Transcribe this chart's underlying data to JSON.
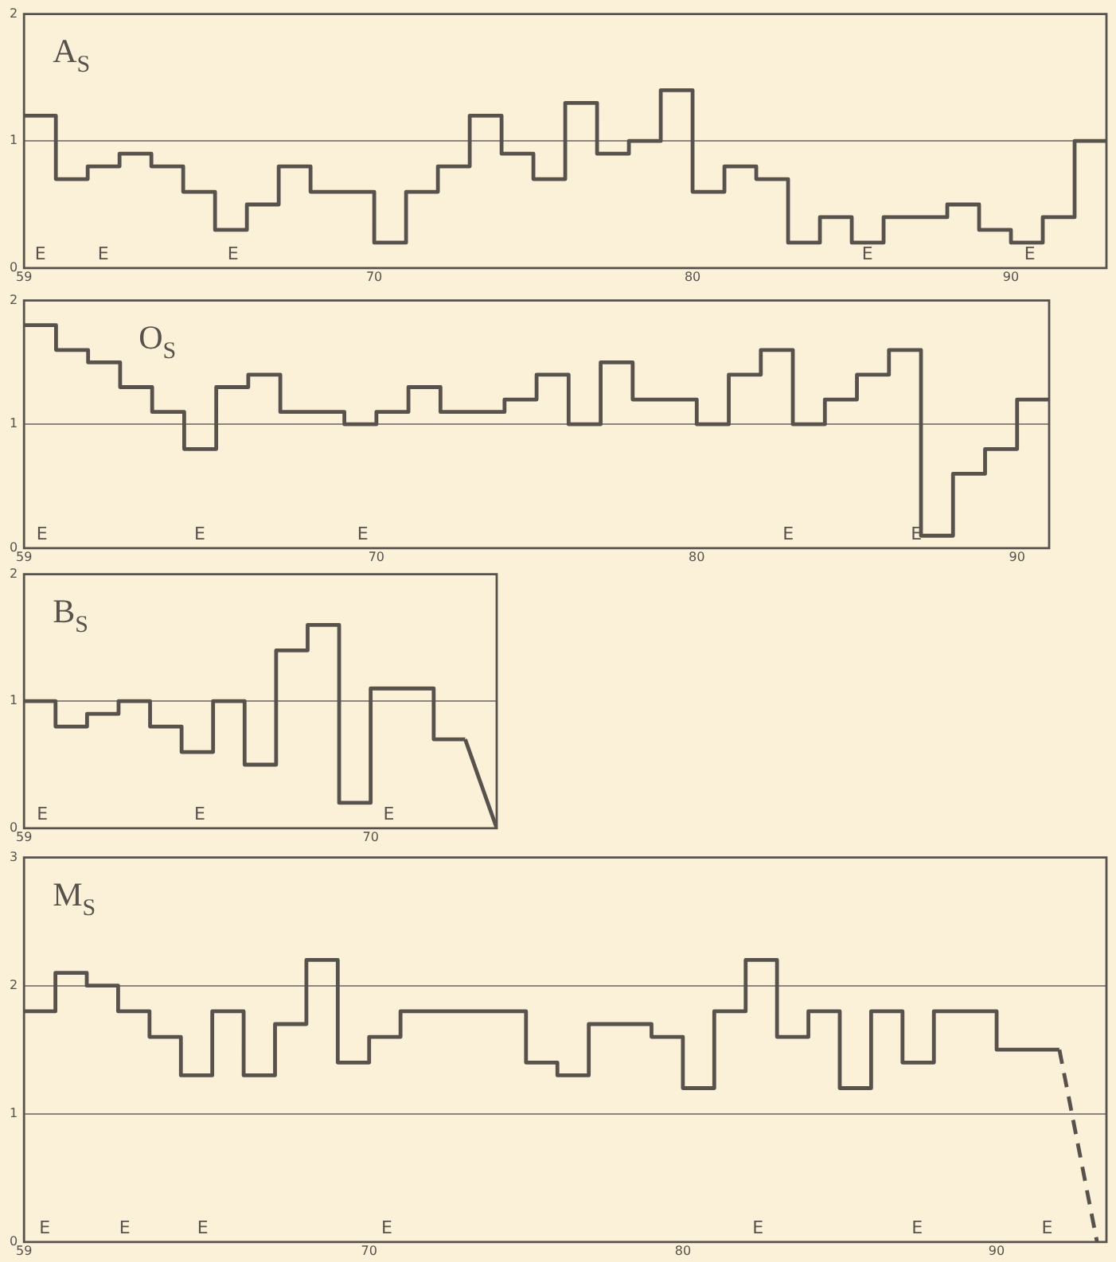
{
  "chart_data": [
    {
      "type": "step",
      "title": "A$_{S}$",
      "xlim": [
        59,
        93
      ],
      "ylim": [
        0,
        2
      ],
      "xticks": [
        59,
        70,
        80,
        90
      ],
      "yticks": [
        0,
        1,
        2
      ],
      "grid": "y",
      "annotations": [
        "E",
        "E",
        "E",
        "E",
        "E"
      ],
      "series": [
        {
          "color": "#57524c",
          "x": [
            59,
            60,
            61,
            62,
            63,
            64,
            65,
            66,
            67,
            68,
            70,
            71,
            72,
            73,
            74,
            75,
            76,
            77,
            78,
            79,
            80,
            81,
            82,
            83,
            84,
            85,
            86,
            88,
            89,
            90,
            91,
            92,
            93
          ],
          "values": [
            1.2,
            0.7,
            0.8,
            0.9,
            0.8,
            0.6,
            0.3,
            0.5,
            0.8,
            0.6,
            0.2,
            0.6,
            0.8,
            1.2,
            0.9,
            0.7,
            1.3,
            0.9,
            1.0,
            1.4,
            0.6,
            0.8,
            0.7,
            0.2,
            0.4,
            0.2,
            0.4,
            0.5,
            0.3,
            0.2,
            0.4,
            1.0,
            1.0
          ]
        }
      ]
    },
    {
      "type": "step",
      "title": "O$_{S}$",
      "xlim": [
        59,
        91
      ],
      "ylim": [
        0,
        2
      ],
      "xticks": [
        59,
        70,
        80,
        90
      ],
      "yticks": [
        0,
        1,
        2
      ],
      "grid": "y",
      "annotations": [
        "E",
        "E",
        "E",
        "E",
        "E"
      ],
      "series": [
        {
          "color": "#57524c",
          "x": [
            59,
            60,
            61,
            62,
            63,
            64,
            65,
            66,
            67,
            69,
            70,
            71,
            72,
            74,
            75,
            76,
            77,
            78,
            80,
            81,
            82,
            83,
            84,
            85,
            86,
            87,
            88,
            89,
            90,
            91
          ],
          "values": [
            1.8,
            1.6,
            1.5,
            1.3,
            1.1,
            0.8,
            1.3,
            1.4,
            1.1,
            1.0,
            1.1,
            1.3,
            1.1,
            1.2,
            1.4,
            1.0,
            1.5,
            1.2,
            1.0,
            1.4,
            1.6,
            1.0,
            1.2,
            1.4,
            1.6,
            0.1,
            0.6,
            0.8,
            1.2,
            1.2
          ]
        }
      ]
    },
    {
      "type": "step",
      "title": "B$_{S}$",
      "xlim": [
        59,
        74
      ],
      "ylim": [
        0,
        2
      ],
      "xticks": [
        59,
        70
      ],
      "yticks": [
        0,
        1,
        2
      ],
      "grid": "y",
      "annotations": [
        "E",
        "E",
        "E"
      ],
      "series": [
        {
          "color": "#57524c",
          "x": [
            59,
            60,
            61,
            62,
            63,
            64,
            65,
            66,
            67,
            68,
            69,
            70,
            72,
            73
          ],
          "values": [
            1.0,
            0.8,
            0.9,
            1.0,
            0.8,
            0.6,
            1.0,
            0.5,
            1.4,
            1.6,
            0.2,
            1.1,
            0.7,
            0.7
          ]
        },
        {
          "type": "line",
          "color": "#57524c",
          "x": [
            73,
            74
          ],
          "values": [
            0.7,
            0
          ]
        }
      ]
    },
    {
      "type": "step",
      "title": "M$_{S}$",
      "xlim": [
        59,
        93.5
      ],
      "ylim": [
        0,
        3
      ],
      "xticks": [
        59,
        70,
        80,
        90
      ],
      "yticks": [
        0,
        1,
        2,
        3
      ],
      "grid": "y",
      "annotations": [
        "E",
        "E",
        "E",
        "E",
        "E",
        "E",
        "E"
      ],
      "series": [
        {
          "color": "#57524c",
          "x": [
            59,
            60,
            61,
            62,
            63,
            64,
            65,
            66,
            67,
            68,
            69,
            70,
            71,
            75,
            76,
            77,
            79,
            80,
            81,
            82,
            83,
            84,
            85,
            86,
            87,
            88,
            90,
            92
          ],
          "values": [
            1.8,
            2.1,
            2.0,
            1.8,
            1.6,
            1.3,
            1.8,
            1.3,
            1.7,
            2.2,
            1.4,
            1.6,
            1.8,
            1.4,
            1.3,
            1.7,
            1.6,
            1.2,
            1.8,
            2.2,
            1.6,
            1.8,
            1.2,
            1.8,
            1.4,
            1.8,
            1.5,
            1.5
          ]
        },
        {
          "type": "line",
          "line_style": "dashed",
          "color": "#57524c",
          "x": [
            92,
            93.2
          ],
          "values": [
            1.5,
            0
          ]
        }
      ]
    }
  ]
}
